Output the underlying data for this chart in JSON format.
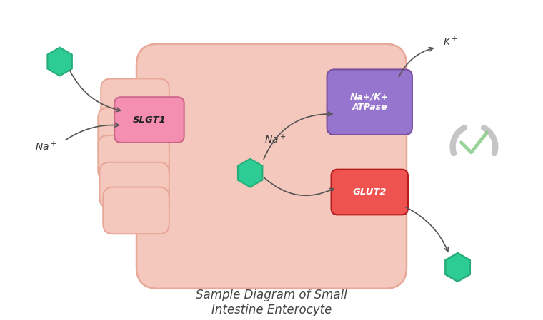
{
  "bg_color": "#ffffff",
  "title": "Sample Diagram of Small\nIntestine Enterocyte",
  "title_fontsize": 12,
  "title_style": "italic",
  "cell_color": "#f5c8be",
  "cell_edge_color": "#e8a898",
  "slgt1_color": "#f48fb1",
  "slgt1_edge": "#cc6688",
  "slgt1_label": "SLGT1",
  "natk_color": "#9575cd",
  "natk_edge": "#7b4fa0",
  "natk_label": "Na+/K+\nATPase",
  "glut2_color": "#ef5350",
  "glut2_edge": "#b71c1c",
  "glut2_label": "GLUT2",
  "hexagon_color": "#2ecc95",
  "hexagon_edge": "#27ae78",
  "arrow_color": "#555555",
  "text_color": "#333333",
  "check_ring_color": "#cccccc",
  "check_mark_color": "#88cc88"
}
